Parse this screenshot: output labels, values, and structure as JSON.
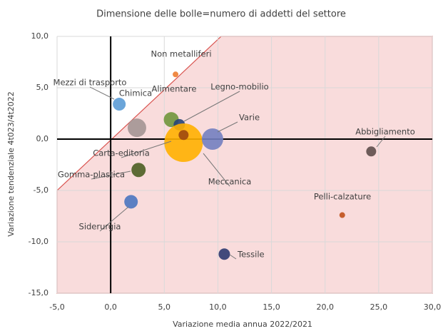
{
  "chart_data": {
    "type": "bubble",
    "title": "Dimensione delle bolle=numero di addetti del settore",
    "x_label": "Variazione media annua 2022/2021",
    "y_label": "Variazione tendenziale 4t023/4t2022",
    "xlim": [
      -5,
      30
    ],
    "xticks": [
      {
        "value": -5,
        "label": "-5,0"
      },
      {
        "value": 0,
        "label": "0,0"
      },
      {
        "value": 5,
        "label": "5,0"
      },
      {
        "value": 10,
        "label": "10,0"
      },
      {
        "value": 15,
        "label": "15,0"
      },
      {
        "value": 20,
        "label": "20,0"
      },
      {
        "value": 25,
        "label": "25,0"
      },
      {
        "value": 30,
        "label": "30,0"
      }
    ],
    "ylim": [
      -15,
      10
    ],
    "yticks": [
      {
        "value": -15,
        "label": "-15,0"
      },
      {
        "value": -10,
        "label": "-10,0"
      },
      {
        "value": -5,
        "label": "-5,0"
      },
      {
        "value": 0,
        "label": "0,0"
      },
      {
        "value": 5,
        "label": "5,0"
      },
      {
        "value": 10,
        "label": "10,0"
      }
    ],
    "grid": true,
    "series": [
      {
        "name": "Non metalliferi",
        "color": "#ed7d31",
        "x": [
          6.05
        ],
        "values": [
          6.3
        ],
        "sizes": [
          16
        ]
      },
      {
        "name": "Mezzi di trasporto",
        "color": "#5b9bd5",
        "x": [
          0.8
        ],
        "values": [
          3.4
        ],
        "sizes": [
          81
        ]
      },
      {
        "name": "Chimica",
        "color": "#a39593",
        "x": [
          2.45
        ],
        "values": [
          1.1
        ],
        "sizes": [
          169
        ]
      },
      {
        "name": "Alimentare",
        "color": "#70963c",
        "x": [
          5.65
        ],
        "values": [
          1.9
        ],
        "sizes": [
          110
        ]
      },
      {
        "name": "Legno-mobilio",
        "color": "#264478",
        "x": [
          6.4
        ],
        "values": [
          1.4
        ],
        "sizes": [
          64
        ]
      },
      {
        "name": "Meccanica",
        "color": "#ffb000",
        "x": [
          6.8
        ],
        "values": [
          -0.35
        ],
        "sizes": [
          729
        ]
      },
      {
        "name": "Carta-editoria",
        "color": "#9e480e",
        "x": [
          6.8
        ],
        "values": [
          0.4
        ],
        "sizes": [
          49
        ]
      },
      {
        "name": "Varie",
        "color": "#737fc0",
        "x": [
          9.5
        ],
        "values": [
          0.0
        ],
        "sizes": [
          225
        ]
      },
      {
        "name": "Abbigliamento",
        "color": "#5e4e4b",
        "x": [
          24.3
        ],
        "values": [
          -1.2
        ],
        "sizes": [
          49
        ]
      },
      {
        "name": "Gomma-plastica",
        "color": "#4b5e22",
        "x": [
          2.6
        ],
        "values": [
          -3.0
        ],
        "sizes": [
          100
        ]
      },
      {
        "name": "Siderurgia",
        "color": "#4a76c0",
        "x": [
          1.9
        ],
        "values": [
          -6.1
        ],
        "sizes": [
          90
        ]
      },
      {
        "name": "Pelli-calzature",
        "color": "#c0501a",
        "x": [
          21.6
        ],
        "values": [
          -7.4
        ],
        "sizes": [
          16
        ]
      },
      {
        "name": "Tessile",
        "color": "#2e3a70",
        "x": [
          10.6
        ],
        "values": [
          -11.2
        ],
        "sizes": [
          64
        ]
      }
    ]
  }
}
